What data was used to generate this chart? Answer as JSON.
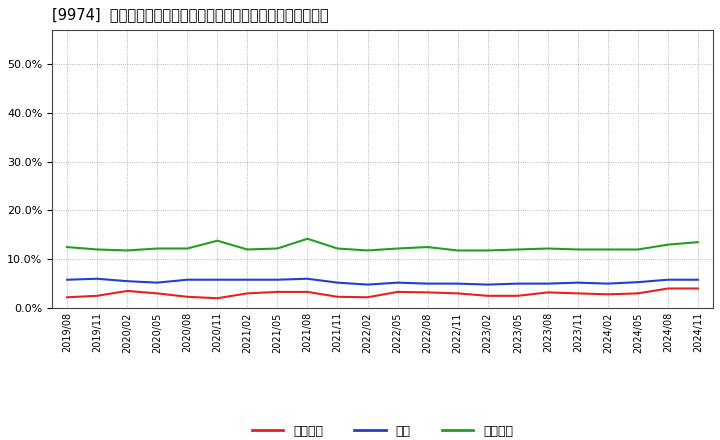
{
  "title": "[9974]  売上債権、在庫、買入債務の総資産に対する比率の推移",
  "x_labels": [
    "2019/08",
    "2019/11",
    "2020/02",
    "2020/05",
    "2020/08",
    "2020/11",
    "2021/02",
    "2021/05",
    "2021/08",
    "2021/11",
    "2022/02",
    "2022/05",
    "2022/08",
    "2022/11",
    "2023/02",
    "2023/05",
    "2023/08",
    "2023/11",
    "2024/02",
    "2024/05",
    "2024/08",
    "2024/11"
  ],
  "receivables": [
    0.022,
    0.025,
    0.035,
    0.03,
    0.023,
    0.02,
    0.03,
    0.033,
    0.033,
    0.023,
    0.022,
    0.033,
    0.032,
    0.03,
    0.025,
    0.025,
    0.032,
    0.03,
    0.028,
    0.03,
    0.04,
    0.04
  ],
  "inventory": [
    0.058,
    0.06,
    0.055,
    0.052,
    0.058,
    0.058,
    0.058,
    0.058,
    0.06,
    0.052,
    0.048,
    0.052,
    0.05,
    0.05,
    0.048,
    0.05,
    0.05,
    0.052,
    0.05,
    0.053,
    0.058,
    0.058
  ],
  "payables": [
    0.125,
    0.12,
    0.118,
    0.122,
    0.122,
    0.138,
    0.12,
    0.122,
    0.142,
    0.122,
    0.118,
    0.122,
    0.125,
    0.118,
    0.118,
    0.12,
    0.122,
    0.12,
    0.12,
    0.12,
    0.13,
    0.135
  ],
  "receivables_color": "#e82020",
  "inventory_color": "#2040d0",
  "payables_color": "#20a020",
  "legend_labels": [
    "売上債権",
    "在庫",
    "買入債務"
  ],
  "ylim": [
    0.0,
    0.57
  ],
  "yticks": [
    0.0,
    0.1,
    0.2,
    0.3,
    0.4,
    0.5
  ],
  "background_color": "#ffffff",
  "grid_color": "#999999",
  "plot_bg_color": "#ffffff"
}
